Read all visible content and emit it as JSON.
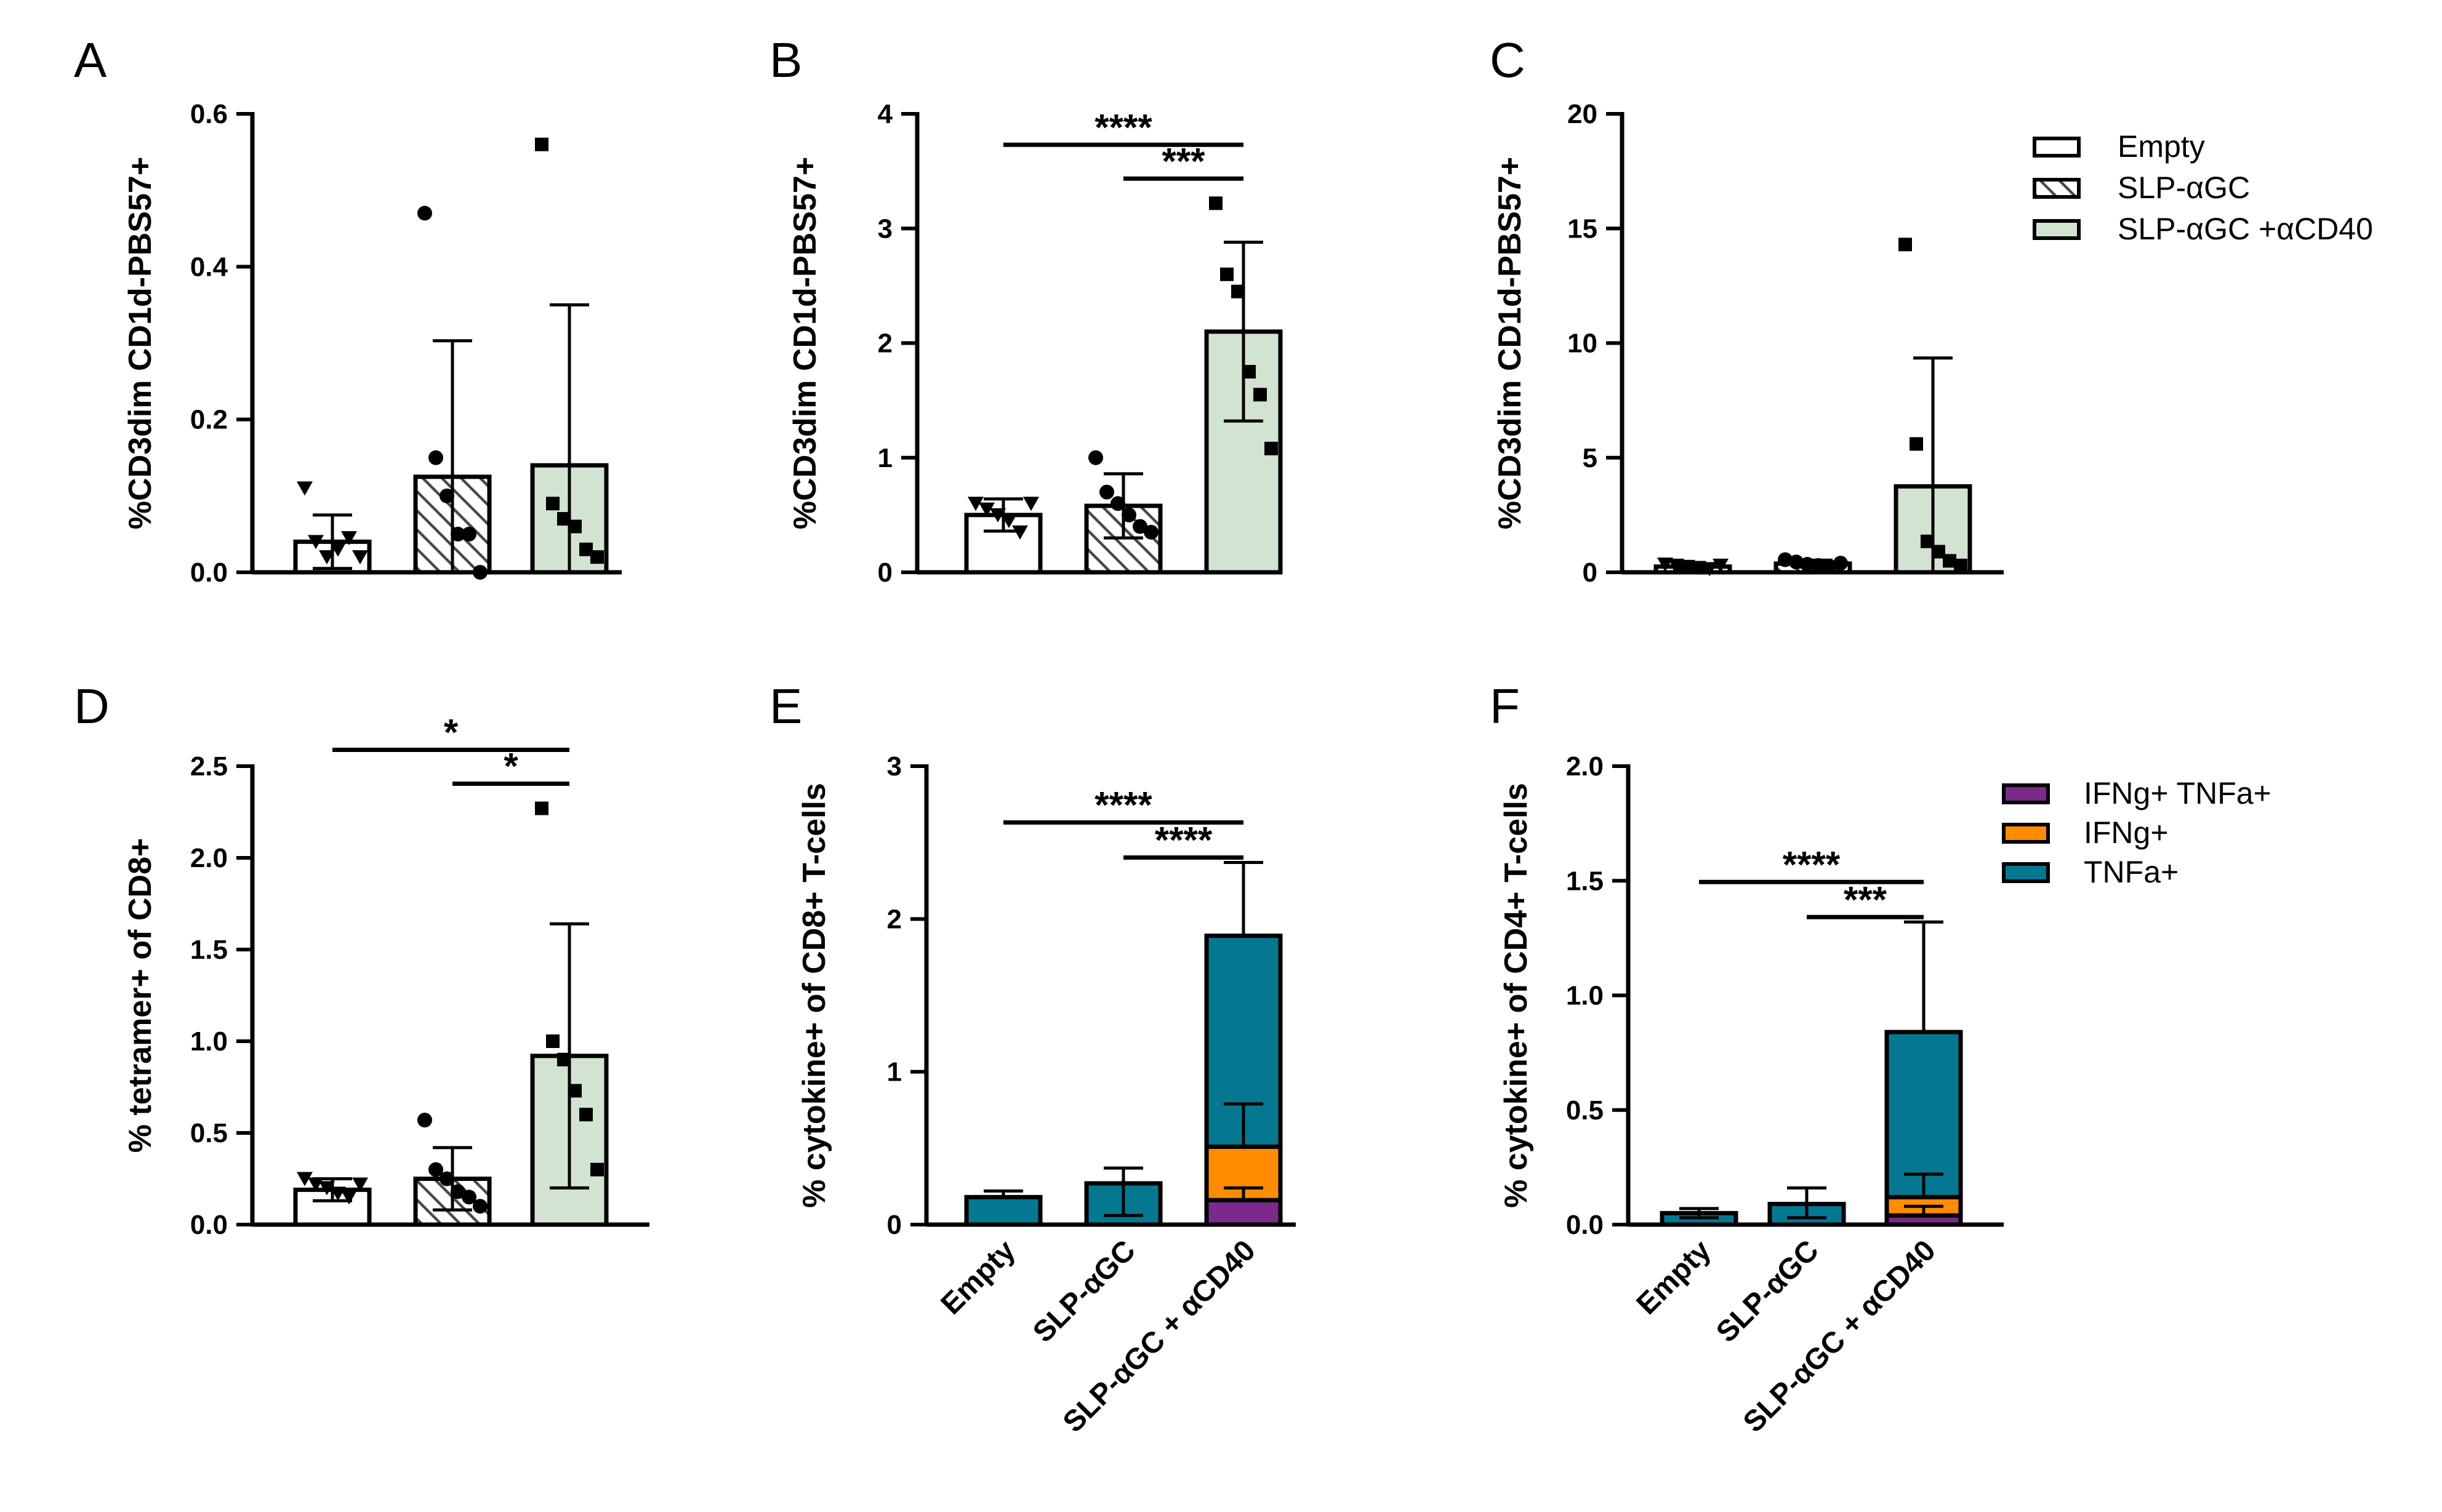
{
  "chart_data": [
    {
      "type": "bar",
      "panel": "A",
      "ylabel": "%CD3dim CD1d-PBS57+",
      "categories": [
        "Empty",
        "SLP-αGC",
        "SLP-αGC +αCD40"
      ],
      "ylim": [
        0,
        0.6
      ],
      "yticks": [
        0,
        0.2,
        0.4,
        0.6
      ],
      "ytick_labels": [
        "0.0",
        "0.2",
        "0.4",
        "0.6"
      ],
      "values": [
        0.04,
        0.125,
        0.14
      ],
      "errors": [
        0.035,
        0.178,
        0.21
      ],
      "points": [
        [
          0.11,
          0.04,
          0.02,
          0.03,
          0.045,
          0.02
        ],
        [
          0.47,
          0.15,
          0.1,
          0.05,
          0.05,
          0.0
        ],
        [
          0.56,
          0.09,
          0.07,
          0.06,
          0.03,
          0.02
        ]
      ],
      "markers": [
        "triangle",
        "circle",
        "square"
      ],
      "fills": [
        "empty",
        "hatch",
        "green"
      ],
      "brackets": []
    },
    {
      "type": "bar",
      "panel": "B",
      "ylabel": "%CD3dim CD1d-PBS57+",
      "categories": [
        "Empty",
        "SLP-αGC",
        "SLP-αGC +αCD40"
      ],
      "ylim": [
        0,
        4
      ],
      "yticks": [
        0,
        1,
        2,
        3,
        4
      ],
      "ytick_labels": [
        "0",
        "1",
        "2",
        "3",
        "4"
      ],
      "values": [
        0.5,
        0.58,
        2.1
      ],
      "errors": [
        0.14,
        0.28,
        0.78
      ],
      "points": [
        [
          0.6,
          0.55,
          0.5,
          0.45,
          0.35,
          0.6
        ],
        [
          1.0,
          0.7,
          0.6,
          0.5,
          0.4,
          0.35
        ],
        [
          3.22,
          2.6,
          2.45,
          1.75,
          1.55,
          1.08
        ]
      ],
      "markers": [
        "triangle",
        "circle",
        "square"
      ],
      "fills": [
        "empty",
        "hatch",
        "green"
      ],
      "brackets": [
        {
          "from": 0,
          "to": 2,
          "label": "****"
        },
        {
          "from": 1,
          "to": 2,
          "label": "***"
        }
      ]
    },
    {
      "type": "bar",
      "panel": "C",
      "ylabel": "%CD3dim CD1d-PBS57+",
      "categories": [
        "Empty",
        "SLP-αGC",
        "SLP-αGC +αCD40"
      ],
      "ylim": [
        0,
        20
      ],
      "yticks": [
        0,
        5,
        10,
        15,
        20
      ],
      "ytick_labels": [
        "0",
        "5",
        "10",
        "15",
        "20"
      ],
      "values": [
        0.25,
        0.38,
        3.75
      ],
      "errors": [
        0.1,
        0.15,
        5.6
      ],
      "points": [
        [
          0.35,
          0.3,
          0.25,
          0.2,
          0.15,
          0.3
        ],
        [
          0.55,
          0.45,
          0.35,
          0.3,
          0.25,
          0.4
        ],
        [
          14.3,
          5.6,
          1.35,
          0.9,
          0.5,
          0.3
        ]
      ],
      "markers": [
        "triangle",
        "circle",
        "square"
      ],
      "fills": [
        "empty",
        "hatch",
        "green"
      ],
      "brackets": []
    },
    {
      "type": "bar",
      "panel": "D",
      "ylabel": "% tetramer+ of CD8+",
      "categories": [
        "Empty",
        "SLP-αGC",
        "SLP-αGC +αCD40"
      ],
      "ylim": [
        0,
        2.5
      ],
      "yticks": [
        0,
        0.5,
        1,
        1.5,
        2,
        2.5
      ],
      "ytick_labels": [
        "0.0",
        "0.5",
        "1.0",
        "1.5",
        "2.0",
        "2.5"
      ],
      "values": [
        0.19,
        0.25,
        0.92
      ],
      "errors": [
        0.06,
        0.17,
        0.72
      ],
      "points": [
        [
          0.25,
          0.22,
          0.2,
          0.17,
          0.15,
          0.22
        ],
        [
          0.57,
          0.3,
          0.25,
          0.18,
          0.15,
          0.1
        ],
        [
          2.27,
          1.0,
          0.9,
          0.73,
          0.6,
          0.3
        ]
      ],
      "markers": [
        "triangle",
        "circle",
        "square"
      ],
      "fills": [
        "empty",
        "hatch",
        "green"
      ],
      "brackets": [
        {
          "from": 0,
          "to": 2,
          "label": "*"
        },
        {
          "from": 1,
          "to": 2,
          "label": "*"
        }
      ]
    },
    {
      "type": "stacked_bar",
      "panel": "E",
      "ylabel": "% cytokine+ of CD8+  T-cells",
      "categories": [
        "Empty",
        "SLP-αGC",
        "SLP-αGC + αCD40"
      ],
      "ylim": [
        0,
        3
      ],
      "yticks": [
        0,
        1,
        2,
        3
      ],
      "ytick_labels": [
        "0",
        "1",
        "2",
        "3"
      ],
      "series": [
        {
          "name": "IFNg+ TNFa+",
          "values": [
            0.0,
            0.0,
            0.16
          ]
        },
        {
          "name": "IFNg+",
          "values": [
            0.0,
            0.0,
            0.35
          ]
        },
        {
          "name": "TNFa+",
          "values": [
            0.18,
            0.27,
            1.38
          ]
        }
      ],
      "error_tops": [
        [
          0.0,
          0.0,
          0.24
        ],
        [
          0.0,
          0.0,
          0.79
        ],
        [
          0.22,
          0.37,
          2.37
        ]
      ],
      "error_bottoms": [
        [
          null,
          null,
          null
        ],
        [
          null,
          null,
          null
        ],
        [
          null,
          0.06,
          null
        ]
      ],
      "brackets": [
        {
          "from": 0,
          "to": 2,
          "label": "****"
        },
        {
          "from": 1,
          "to": 2,
          "label": "****"
        }
      ]
    },
    {
      "type": "stacked_bar",
      "panel": "F",
      "ylabel": "% cytokine+ of CD4+  T-cells",
      "categories": [
        "Empty",
        "SLP-αGC",
        "SLP-αGC + αCD40"
      ],
      "ylim": [
        0,
        2
      ],
      "yticks": [
        0,
        0.5,
        1,
        1.5,
        2
      ],
      "ytick_labels": [
        "0.0",
        "0.5",
        "1.0",
        "1.5",
        "2.0"
      ],
      "series": [
        {
          "name": "IFNg+ TNFa+",
          "values": [
            0.0,
            0.0,
            0.04
          ]
        },
        {
          "name": "IFNg+",
          "values": [
            0.0,
            0.0,
            0.08
          ]
        },
        {
          "name": "TNFa+",
          "values": [
            0.05,
            0.09,
            0.72
          ]
        }
      ],
      "error_tops": [
        [
          0.0,
          0.0,
          0.08
        ],
        [
          0.0,
          0.0,
          0.22
        ],
        [
          0.07,
          0.16,
          1.32
        ]
      ],
      "error_bottoms": [
        [
          null,
          null,
          null
        ],
        [
          null,
          null,
          null
        ],
        [
          0.03,
          0.03,
          null
        ]
      ],
      "brackets": [
        {
          "from": 0,
          "to": 2,
          "label": "****"
        },
        {
          "from": 1,
          "to": 2,
          "label": "***"
        }
      ]
    }
  ],
  "legends": {
    "top": [
      {
        "label": "Empty",
        "fill": "empty"
      },
      {
        "label": "SLP-αGC",
        "fill": "hatch"
      },
      {
        "label": "SLP-αGC +αCD40",
        "fill": "green"
      }
    ],
    "bottom": [
      {
        "label": "IFNg+ TNFa+",
        "color": "#7b2a8c"
      },
      {
        "label": "IFNg+",
        "color": "#ff8c00"
      },
      {
        "label": "TNFa+",
        "color": "#047891"
      }
    ]
  },
  "colors": {
    "green": "#d3e3d1",
    "purple": "#7b2a8c",
    "orange": "#ff8c00",
    "teal": "#047891",
    "hatch": "#4a4a4a"
  }
}
